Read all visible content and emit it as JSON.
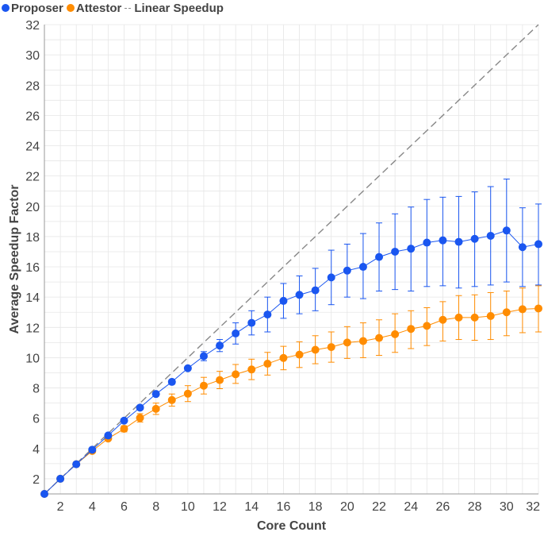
{
  "legend": {
    "proposer": "Proposer",
    "attestor": "Attestor",
    "linear": "Linear Speedup"
  },
  "colors": {
    "proposer": "#1a56f0",
    "attestor": "#ff8c00",
    "linear": "#888888",
    "grid": "#e6e6e6"
  },
  "chart_data": {
    "type": "scatter",
    "title": "",
    "xlabel": "Core Count",
    "ylabel": "Average Speedup Factor",
    "xlim": [
      1,
      32
    ],
    "ylim": [
      1,
      32
    ],
    "xticks": [
      2,
      4,
      6,
      8,
      10,
      12,
      14,
      16,
      18,
      20,
      22,
      24,
      26,
      28,
      30,
      32
    ],
    "yticks": [
      2,
      4,
      6,
      8,
      10,
      12,
      14,
      16,
      18,
      20,
      22,
      24,
      26,
      28,
      30,
      32
    ],
    "grid": true,
    "legend_position": "top-left",
    "x": [
      1,
      2,
      3,
      4,
      5,
      6,
      7,
      8,
      9,
      10,
      11,
      12,
      13,
      14,
      15,
      16,
      17,
      18,
      19,
      20,
      21,
      22,
      23,
      24,
      25,
      26,
      27,
      28,
      29,
      30,
      31,
      32
    ],
    "series": [
      {
        "name": "Proposer",
        "values": [
          1.0,
          2.0,
          2.96,
          3.92,
          4.86,
          5.84,
          6.7,
          7.6,
          8.4,
          9.3,
          10.1,
          10.8,
          11.6,
          12.3,
          12.85,
          13.75,
          14.15,
          14.45,
          15.3,
          15.75,
          16.0,
          16.65,
          17.0,
          17.2,
          17.6,
          17.75,
          17.65,
          17.85,
          18.05,
          18.4,
          17.3,
          17.5
        ],
        "err_low": [
          1.0,
          2.0,
          2.96,
          3.92,
          4.86,
          5.84,
          6.7,
          7.6,
          8.25,
          9.2,
          9.8,
          10.4,
          10.9,
          11.5,
          11.7,
          12.6,
          12.9,
          13.1,
          13.5,
          14.0,
          13.9,
          14.4,
          14.5,
          14.4,
          14.7,
          14.75,
          14.6,
          14.7,
          14.8,
          15.0,
          14.7,
          14.8
        ],
        "err_high": [
          1.0,
          2.0,
          2.96,
          3.92,
          4.86,
          5.84,
          6.7,
          7.6,
          8.55,
          9.4,
          10.4,
          11.2,
          12.3,
          13.1,
          14.0,
          14.9,
          15.4,
          15.9,
          17.1,
          17.5,
          18.2,
          18.9,
          19.5,
          19.95,
          20.45,
          20.6,
          20.65,
          20.95,
          21.3,
          21.8,
          19.9,
          20.15
        ]
      },
      {
        "name": "Attestor",
        "values": [
          1.0,
          2.0,
          2.96,
          3.84,
          4.66,
          5.3,
          6.02,
          6.62,
          7.2,
          7.62,
          8.15,
          8.52,
          8.9,
          9.22,
          9.6,
          9.98,
          10.2,
          10.52,
          10.7,
          11.0,
          11.1,
          11.3,
          11.55,
          11.9,
          12.1,
          12.5,
          12.65,
          12.65,
          12.75,
          13.0,
          13.2,
          13.25
        ],
        "err_low": [
          1.0,
          2.0,
          2.96,
          3.84,
          4.6,
          5.1,
          5.75,
          6.25,
          6.8,
          7.1,
          7.6,
          7.95,
          8.3,
          8.55,
          8.85,
          9.2,
          9.35,
          9.6,
          9.7,
          9.95,
          10.0,
          10.15,
          10.35,
          10.6,
          10.8,
          11.1,
          11.2,
          11.15,
          11.2,
          11.45,
          11.65,
          11.7
        ],
        "err_high": [
          1.0,
          2.0,
          2.96,
          3.84,
          4.72,
          5.5,
          6.3,
          7.0,
          7.6,
          8.15,
          8.7,
          9.1,
          9.55,
          9.9,
          10.35,
          10.75,
          11.05,
          11.45,
          11.7,
          12.05,
          12.3,
          12.5,
          12.9,
          13.1,
          13.3,
          13.7,
          14.1,
          14.15,
          14.3,
          14.4,
          14.6,
          14.75
        ]
      }
    ]
  }
}
